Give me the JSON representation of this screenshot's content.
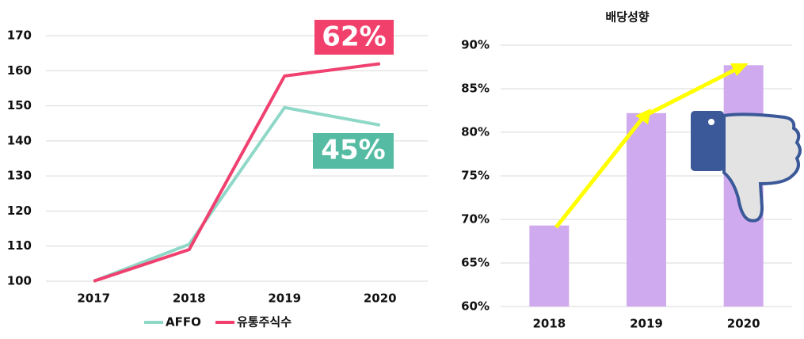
{
  "chart_data": [
    {
      "type": "line",
      "categories": [
        "2017",
        "2018",
        "2019",
        "2020"
      ],
      "series": [
        {
          "name": "AFFO",
          "color": "#8fd8c8",
          "values": [
            100,
            110.5,
            149.5,
            144.5
          ]
        },
        {
          "name": "유통주식수",
          "color": "#f0406f",
          "values": [
            100,
            109,
            158.5,
            162
          ]
        }
      ],
      "ylim": [
        100,
        170
      ],
      "yticks": [
        100,
        110,
        120,
        130,
        140,
        150,
        160,
        170
      ],
      "grid": true,
      "legend": "bottom",
      "annotations": [
        "62%",
        "45%"
      ]
    },
    {
      "type": "bar",
      "title": "배당성향",
      "categories": [
        "2018",
        "2019",
        "2020"
      ],
      "values": [
        69.3,
        82.2,
        87.7
      ],
      "color": "#cfaaee",
      "ylim": [
        60,
        90
      ],
      "yticks": [
        {
          "value": 60,
          "label": "60%"
        },
        {
          "value": 65,
          "label": "65%"
        },
        {
          "value": 70,
          "label": "70%"
        },
        {
          "value": 75,
          "label": "75%"
        },
        {
          "value": 80,
          "label": "80%"
        },
        {
          "value": 85,
          "label": "85%"
        },
        {
          "value": 90,
          "label": "90%"
        }
      ],
      "grid": true
    }
  ]
}
